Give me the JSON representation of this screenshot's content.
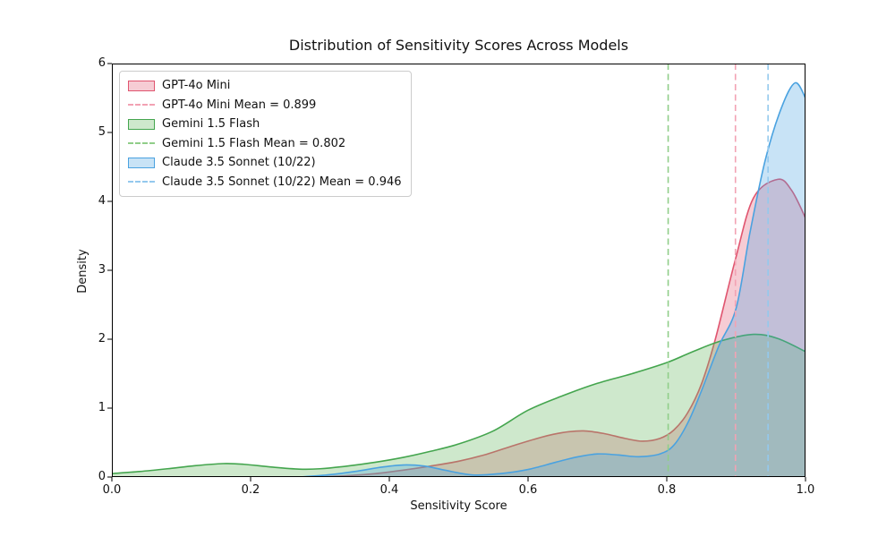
{
  "chart_data": {
    "type": "area",
    "subtype": "kde-density",
    "title": "Distribution of Sensitivity Scores Across Models",
    "xlabel": "Sensitivity Score",
    "ylabel": "Density",
    "xlim": [
      0.0,
      1.0
    ],
    "ylim": [
      0,
      6
    ],
    "x_tick_values": [
      0.0,
      0.2,
      0.4,
      0.6,
      0.8,
      1.0
    ],
    "x_tick_labels": [
      "0.0",
      "0.2",
      "0.4",
      "0.6",
      "0.8",
      "1.0"
    ],
    "y_tick_values": [
      0,
      1,
      2,
      3,
      4,
      5,
      6
    ],
    "y_tick_labels": [
      "0",
      "1",
      "2",
      "3",
      "4",
      "5",
      "6"
    ],
    "grid": false,
    "legend_position": "upper left",
    "axis_color": "#000000",
    "series": [
      {
        "name": "GPT-4o Mini",
        "mean": 0.899,
        "mean_label": "GPT-4o Mini Mean = 0.899",
        "line_color": "#e0556f",
        "fill_color": "rgba(224,85,111,0.30)",
        "mean_line_color": "#f2a2b3",
        "points": [
          [
            0.3,
            0.0
          ],
          [
            0.34,
            0.02
          ],
          [
            0.38,
            0.05
          ],
          [
            0.42,
            0.1
          ],
          [
            0.46,
            0.16
          ],
          [
            0.5,
            0.23
          ],
          [
            0.54,
            0.33
          ],
          [
            0.58,
            0.46
          ],
          [
            0.62,
            0.58
          ],
          [
            0.65,
            0.645
          ],
          [
            0.68,
            0.67
          ],
          [
            0.71,
            0.63
          ],
          [
            0.74,
            0.56
          ],
          [
            0.765,
            0.52
          ],
          [
            0.79,
            0.56
          ],
          [
            0.81,
            0.68
          ],
          [
            0.83,
            0.93
          ],
          [
            0.85,
            1.35
          ],
          [
            0.87,
            2.0
          ],
          [
            0.899,
            3.16
          ],
          [
            0.925,
            4.05
          ],
          [
            0.96,
            4.32
          ],
          [
            0.98,
            4.16
          ],
          [
            1.0,
            3.76
          ]
        ]
      },
      {
        "name": "Gemini 1.5 Flash",
        "mean": 0.802,
        "mean_label": "Gemini 1.5 Flash Mean = 0.802",
        "line_color": "#44a54e",
        "fill_color": "rgba(104,182,96,0.32)",
        "mean_line_color": "#90ce89",
        "points": [
          [
            0.0,
            0.05
          ],
          [
            0.04,
            0.08
          ],
          [
            0.08,
            0.12
          ],
          [
            0.12,
            0.165
          ],
          [
            0.16,
            0.195
          ],
          [
            0.19,
            0.185
          ],
          [
            0.23,
            0.145
          ],
          [
            0.27,
            0.115
          ],
          [
            0.3,
            0.12
          ],
          [
            0.34,
            0.16
          ],
          [
            0.38,
            0.215
          ],
          [
            0.42,
            0.285
          ],
          [
            0.46,
            0.375
          ],
          [
            0.5,
            0.48
          ],
          [
            0.55,
            0.67
          ],
          [
            0.6,
            0.97
          ],
          [
            0.65,
            1.18
          ],
          [
            0.7,
            1.36
          ],
          [
            0.75,
            1.5
          ],
          [
            0.8,
            1.66
          ],
          [
            0.84,
            1.83
          ],
          [
            0.88,
            1.98
          ],
          [
            0.925,
            2.07
          ],
          [
            0.96,
            2.01
          ],
          [
            1.0,
            1.82
          ]
        ]
      },
      {
        "name": "Claude 3.5 Sonnet (10/22)",
        "mean": 0.946,
        "mean_label": "Claude 3.5 Sonnet (10/22) Mean = 0.946",
        "line_color": "#4aa2e0",
        "fill_color": "rgba(74,162,224,0.30)",
        "mean_line_color": "#94c9ee",
        "points": [
          [
            0.27,
            0.0
          ],
          [
            0.31,
            0.03
          ],
          [
            0.35,
            0.08
          ],
          [
            0.39,
            0.145
          ],
          [
            0.42,
            0.175
          ],
          [
            0.45,
            0.16
          ],
          [
            0.48,
            0.1
          ],
          [
            0.52,
            0.03
          ],
          [
            0.56,
            0.05
          ],
          [
            0.6,
            0.11
          ],
          [
            0.64,
            0.215
          ],
          [
            0.67,
            0.29
          ],
          [
            0.7,
            0.335
          ],
          [
            0.73,
            0.32
          ],
          [
            0.76,
            0.295
          ],
          [
            0.79,
            0.335
          ],
          [
            0.81,
            0.46
          ],
          [
            0.83,
            0.78
          ],
          [
            0.85,
            1.25
          ],
          [
            0.875,
            1.9
          ],
          [
            0.9,
            2.45
          ],
          [
            0.92,
            3.55
          ],
          [
            0.942,
            4.6
          ],
          [
            0.965,
            5.35
          ],
          [
            0.985,
            5.72
          ],
          [
            1.0,
            5.5
          ]
        ]
      }
    ]
  },
  "layout_text": {
    "note": "all visible text lives in chart_data"
  }
}
